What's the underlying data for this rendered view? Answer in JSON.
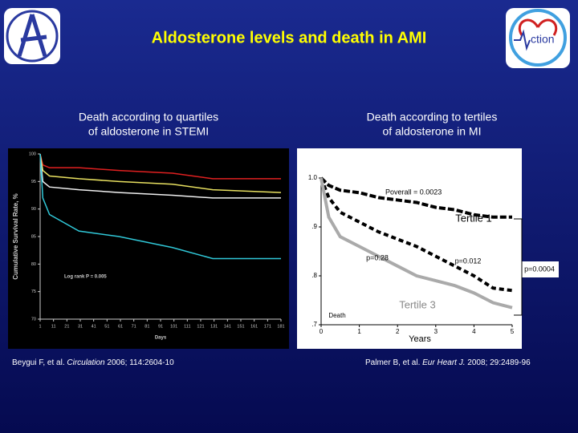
{
  "title": "Aldosterone levels and death in AMI",
  "logo_text": "ction",
  "chart_data": [
    {
      "type": "line",
      "title_lines": [
        "Death according to quartiles",
        "of aldosterone in STEMI"
      ],
      "x_label": "Days",
      "y_label": "Cumulative Survival Rate, %",
      "annotations": [
        "Log rank P = 0.005"
      ],
      "x": [
        1,
        3,
        8,
        30,
        60,
        100,
        130,
        181
      ],
      "series": [
        {
          "color": "#e02020",
          "values": [
            100,
            98,
            97.5,
            97.5,
            97,
            96.5,
            95.5,
            95.5
          ]
        },
        {
          "color": "#e8e060",
          "values": [
            100,
            97,
            96,
            95.5,
            95,
            94.5,
            93.5,
            93
          ]
        },
        {
          "color": "#f0f0f0",
          "values": [
            100,
            95,
            94,
            93.5,
            93,
            92.5,
            92,
            92
          ]
        },
        {
          "color": "#30c8d8",
          "values": [
            100,
            92,
            89,
            86,
            85,
            83,
            81,
            81
          ]
        }
      ],
      "xlim": [
        1,
        181
      ],
      "ylim": [
        70,
        100
      ],
      "xticks": [
        1,
        11,
        21,
        31,
        41,
        51,
        61,
        71,
        81,
        91,
        101,
        111,
        121,
        131,
        141,
        151,
        161,
        171,
        181
      ],
      "yticks": [
        70,
        75,
        80,
        85,
        90,
        95,
        100
      ],
      "citation": {
        "authors": "Beygui F, et al. ",
        "journal": "Circulation",
        "ref": " 2006; 114:2604-10"
      }
    },
    {
      "type": "line",
      "title_lines": [
        "Death according to tertiles",
        "of aldosterone in MI"
      ],
      "x_label": "Years",
      "annotations": [
        "Poverall = 0.0023",
        "Tertile 1",
        "p=0.28",
        "p=0.012",
        "p=0.0004",
        "Tertile 3",
        "Death"
      ],
      "x": [
        0,
        0.2,
        0.5,
        1,
        1.5,
        2,
        2.5,
        3,
        3.5,
        4,
        4.5,
        5
      ],
      "series": [
        {
          "color": "#000000",
          "values": [
            1.0,
            0.985,
            0.975,
            0.97,
            0.96,
            0.955,
            0.95,
            0.94,
            0.935,
            0.925,
            0.92,
            0.92
          ]
        },
        {
          "color": "#000000",
          "values": [
            1.0,
            0.96,
            0.93,
            0.91,
            0.89,
            0.875,
            0.86,
            0.84,
            0.82,
            0.8,
            0.775,
            0.77
          ]
        },
        {
          "color": "#aaaaaa",
          "values": [
            1.0,
            0.92,
            0.88,
            0.86,
            0.84,
            0.82,
            0.8,
            0.79,
            0.78,
            0.765,
            0.745,
            0.735
          ]
        }
      ],
      "xlim": [
        0,
        5
      ],
      "ylim": [
        0.7,
        1.0
      ],
      "xticks": [
        0,
        1,
        2,
        3,
        4,
        5
      ],
      "yticks": [
        {
          "value": 0.7,
          "label": ".7"
        },
        {
          "value": 0.8,
          "label": ".8"
        },
        {
          "value": 0.9,
          "label": ".9"
        },
        {
          "value": 1.0,
          "label": "1.0"
        }
      ],
      "citation": {
        "authors": "Palmer B, et al. ",
        "journal": "Eur Heart J.",
        "ref": " 2008; 29:2489-96"
      }
    }
  ]
}
